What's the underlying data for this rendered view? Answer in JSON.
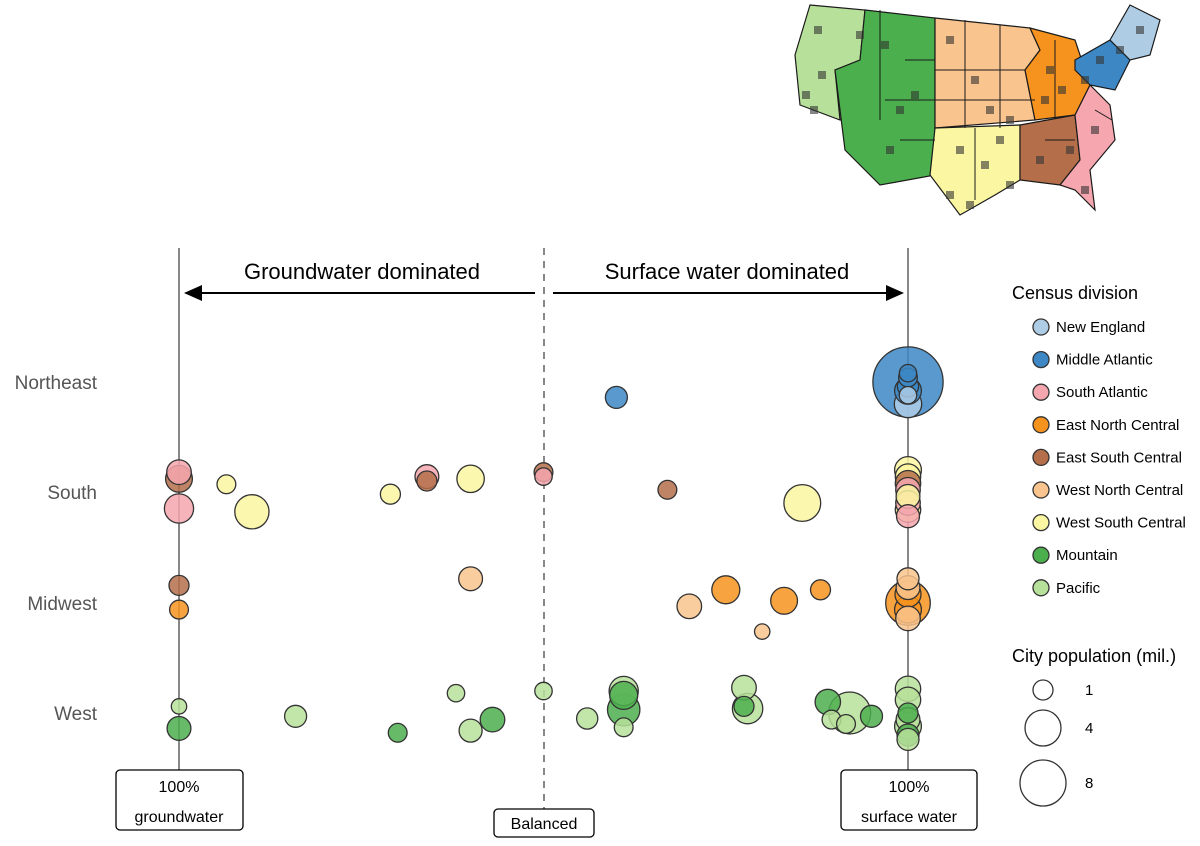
{
  "colors": {
    "New England": "#aecde5",
    "Middle Atlantic": "#3c87c4",
    "South Atlantic": "#f5a6ae",
    "East North Central": "#f6931f",
    "East South Central": "#b46e4a",
    "West North Central": "#f9c48d",
    "West South Central": "#fbf6a1",
    "Mountain": "#4caf4d",
    "Pacific": "#b7e09a"
  },
  "annotations": {
    "groundwater_dominated": "Groundwater dominated",
    "surface_water_dominated": "Surface water dominated",
    "left_box_line1": "100%",
    "left_box_line2": "groundwater",
    "middle_box": "Balanced",
    "right_box_line1": "100%",
    "right_box_line2": "surface water"
  },
  "chart_data": {
    "type": "scatter",
    "x_axis": {
      "range": [
        -1,
        1
      ],
      "left_end": "100% groundwater",
      "center": "Balanced",
      "right_end": "100% surface water"
    },
    "regions": [
      "Northeast",
      "South",
      "Midwest",
      "West"
    ],
    "legend": {
      "color_title": "Census division",
      "divisions": [
        "New England",
        "Middle Atlantic",
        "South Atlantic",
        "East North Central",
        "East South Central",
        "West North Central",
        "West South Central",
        "Mountain",
        "Pacific"
      ],
      "size_title": "City population (mil.)",
      "sizes": [
        1,
        4,
        8
      ]
    },
    "points": [
      {
        "region": "Northeast",
        "division": "Middle Atlantic",
        "x": 1.0,
        "y_offset": 0,
        "pop": 8.3
      },
      {
        "region": "Northeast",
        "division": "Middle Atlantic",
        "x": 1.0,
        "y_offset": -0.08,
        "pop": 0.1
      },
      {
        "region": "Northeast",
        "division": "Middle Atlantic",
        "x": 1.0,
        "y_offset": -0.04,
        "pop": 0.15
      },
      {
        "region": "Northeast",
        "division": "Middle Atlantic",
        "x": 1.0,
        "y_offset": 0.04,
        "pop": 0.25
      },
      {
        "region": "Northeast",
        "division": "Middle Atlantic",
        "x": 1.0,
        "y_offset": 0.08,
        "pop": 0.6
      },
      {
        "region": "Northeast",
        "division": "New England",
        "x": 1.0,
        "y_offset": 0.12,
        "pop": 0.1
      },
      {
        "region": "Northeast",
        "division": "New England",
        "x": 1.0,
        "y_offset": 0.2,
        "pop": 0.65
      },
      {
        "region": "Northeast",
        "division": "Middle Atlantic",
        "x": 0.2,
        "y_offset": 0.14,
        "pop": 0.3
      },
      {
        "region": "South",
        "division": "South Atlantic",
        "x": -1.0,
        "y_offset": -0.18,
        "pop": 0.45
      },
      {
        "region": "South",
        "division": "East South Central",
        "x": -1.0,
        "y_offset": -0.12,
        "pop": 0.6
      },
      {
        "region": "South",
        "division": "South Atlantic",
        "x": -1.0,
        "y_offset": 0.15,
        "pop": 0.8
      },
      {
        "region": "South",
        "division": "West South Central",
        "x": -0.87,
        "y_offset": -0.07,
        "pop": 0.15
      },
      {
        "region": "South",
        "division": "West South Central",
        "x": -0.8,
        "y_offset": 0.18,
        "pop": 1.3
      },
      {
        "region": "South",
        "division": "South Atlantic",
        "x": -0.32,
        "y_offset": -0.14,
        "pop": 0.4
      },
      {
        "region": "South",
        "division": "East South Central",
        "x": -0.32,
        "y_offset": -0.1,
        "pop": 0.2
      },
      {
        "region": "South",
        "division": "West South Central",
        "x": -0.42,
        "y_offset": 0.02,
        "pop": 0.2
      },
      {
        "region": "South",
        "division": "West South Central",
        "x": -0.2,
        "y_offset": -0.12,
        "pop": 0.65
      },
      {
        "region": "South",
        "division": "East South Central",
        "x": 0.0,
        "y_offset": -0.18,
        "pop": 0.15
      },
      {
        "region": "South",
        "division": "South Atlantic",
        "x": 0.0,
        "y_offset": -0.14,
        "pop": 0.1
      },
      {
        "region": "South",
        "division": "East South Central",
        "x": 0.34,
        "y_offset": -0.02,
        "pop": 0.15
      },
      {
        "region": "South",
        "division": "West South Central",
        "x": 0.71,
        "y_offset": 0.1,
        "pop": 1.6
      },
      {
        "region": "South",
        "division": "West South Central",
        "x": 1.0,
        "y_offset": -0.2,
        "pop": 0.6
      },
      {
        "region": "South",
        "division": "West South Central",
        "x": 1.0,
        "y_offset": -0.14,
        "pop": 0.5
      },
      {
        "region": "South",
        "division": "East South Central",
        "x": 1.0,
        "y_offset": -0.08,
        "pop": 0.5
      },
      {
        "region": "South",
        "division": "South Atlantic",
        "x": 1.0,
        "y_offset": -0.02,
        "pop": 0.45
      },
      {
        "region": "South",
        "division": "West South Central",
        "x": 1.0,
        "y_offset": 0.04,
        "pop": 0.4
      },
      {
        "region": "South",
        "division": "South Atlantic",
        "x": 1.0,
        "y_offset": 0.1,
        "pop": 0.45
      },
      {
        "region": "South",
        "division": "West South Central",
        "x": 1.0,
        "y_offset": 0.16,
        "pop": 0.5
      },
      {
        "region": "South",
        "division": "South Atlantic",
        "x": 1.0,
        "y_offset": 0.22,
        "pop": 0.35
      },
      {
        "region": "Midwest",
        "division": "East South Central",
        "x": -1.0,
        "y_offset": -0.16,
        "pop": 0.2
      },
      {
        "region": "Midwest",
        "division": "East North Central",
        "x": -1.0,
        "y_offset": 0.06,
        "pop": 0.15
      },
      {
        "region": "Midwest",
        "division": "West North Central",
        "x": -0.2,
        "y_offset": -0.22,
        "pop": 0.4
      },
      {
        "region": "Midwest",
        "division": "West North Central",
        "x": 0.4,
        "y_offset": 0.03,
        "pop": 0.45
      },
      {
        "region": "Midwest",
        "division": "East North Central",
        "x": 0.5,
        "y_offset": -0.12,
        "pop": 0.7
      },
      {
        "region": "Midwest",
        "division": "East North Central",
        "x": 0.66,
        "y_offset": -0.02,
        "pop": 0.6
      },
      {
        "region": "Midwest",
        "division": "East North Central",
        "x": 0.76,
        "y_offset": -0.12,
        "pop": 0.2
      },
      {
        "region": "Midwest",
        "division": "West North Central",
        "x": 0.6,
        "y_offset": 0.26,
        "pop": 0.05
      },
      {
        "region": "Midwest",
        "division": "West North Central",
        "x": 1.0,
        "y_offset": -0.22,
        "pop": 0.3
      },
      {
        "region": "Midwest",
        "division": "West North Central",
        "x": 1.0,
        "y_offset": -0.14,
        "pop": 0.4
      },
      {
        "region": "Midwest",
        "division": "East North Central",
        "x": 1.0,
        "y_offset": -0.08,
        "pop": 0.55
      },
      {
        "region": "Midwest",
        "division": "East North Central",
        "x": 1.0,
        "y_offset": 0.0,
        "pop": 2.7
      },
      {
        "region": "Midwest",
        "division": "East North Central",
        "x": 1.0,
        "y_offset": 0.06,
        "pop": 0.6
      },
      {
        "region": "Midwest",
        "division": "West North Central",
        "x": 1.0,
        "y_offset": 0.14,
        "pop": 0.45
      },
      {
        "region": "West",
        "division": "Pacific",
        "x": -1.0,
        "y_offset": -0.06,
        "pop": 0.05
      },
      {
        "region": "West",
        "division": "Mountain",
        "x": -1.0,
        "y_offset": 0.14,
        "pop": 0.4
      },
      {
        "region": "West",
        "division": "Pacific",
        "x": -0.68,
        "y_offset": 0.03,
        "pop": 0.3
      },
      {
        "region": "West",
        "division": "Mountain",
        "x": -0.4,
        "y_offset": 0.18,
        "pop": 0.15
      },
      {
        "region": "West",
        "division": "Pacific",
        "x": -0.24,
        "y_offset": -0.18,
        "pop": 0.1
      },
      {
        "region": "West",
        "division": "Pacific",
        "x": -0.2,
        "y_offset": 0.16,
        "pop": 0.35
      },
      {
        "region": "West",
        "division": "Mountain",
        "x": -0.14,
        "y_offset": 0.06,
        "pop": 0.45
      },
      {
        "region": "West",
        "division": "Pacific",
        "x": 0.0,
        "y_offset": -0.2,
        "pop": 0.1
      },
      {
        "region": "West",
        "division": "Pacific",
        "x": 0.12,
        "y_offset": 0.05,
        "pop": 0.25
      },
      {
        "region": "West",
        "division": "Pacific",
        "x": 0.22,
        "y_offset": -0.2,
        "pop": 0.8
      },
      {
        "region": "West",
        "division": "Mountain",
        "x": 0.22,
        "y_offset": -0.16,
        "pop": 0.7
      },
      {
        "region": "West",
        "division": "Mountain",
        "x": 0.22,
        "y_offset": -0.03,
        "pop": 1.1
      },
      {
        "region": "West",
        "division": "Pacific",
        "x": 0.22,
        "y_offset": 0.13,
        "pop": 0.15
      },
      {
        "region": "West",
        "division": "Pacific",
        "x": 0.55,
        "y_offset": -0.23,
        "pop": 0.45
      },
      {
        "region": "West",
        "division": "Mountain",
        "x": 0.55,
        "y_offset": -0.06,
        "pop": 0.2
      },
      {
        "region": "West",
        "division": "Pacific",
        "x": 0.56,
        "y_offset": -0.04,
        "pop": 0.9
      },
      {
        "region": "West",
        "division": "Mountain",
        "x": 0.78,
        "y_offset": -0.1,
        "pop": 0.5
      },
      {
        "region": "West",
        "division": "Pacific",
        "x": 0.84,
        "y_offset": 0.0,
        "pop": 2.3
      },
      {
        "region": "West",
        "division": "Mountain",
        "x": 0.9,
        "y_offset": 0.03,
        "pop": 0.3
      },
      {
        "region": "West",
        "division": "Pacific",
        "x": 0.79,
        "y_offset": 0.06,
        "pop": 0.15
      },
      {
        "region": "West",
        "division": "Pacific",
        "x": 0.83,
        "y_offset": 0.1,
        "pop": 0.15
      },
      {
        "region": "West",
        "division": "Pacific",
        "x": 1.0,
        "y_offset": -0.22,
        "pop": 0.5
      },
      {
        "region": "West",
        "division": "Pacific",
        "x": 1.0,
        "y_offset": -0.12,
        "pop": 0.5
      },
      {
        "region": "West",
        "division": "Mountain",
        "x": 1.0,
        "y_offset": 0.0,
        "pop": 0.2
      },
      {
        "region": "West",
        "division": "Pacific",
        "x": 1.0,
        "y_offset": 0.06,
        "pop": 0.4
      },
      {
        "region": "West",
        "division": "Pacific",
        "x": 1.0,
        "y_offset": 0.12,
        "pop": 0.6
      },
      {
        "region": "West",
        "division": "Mountain",
        "x": 1.0,
        "y_offset": 0.2,
        "pop": 0.3
      },
      {
        "region": "West",
        "division": "Pacific",
        "x": 1.0,
        "y_offset": 0.24,
        "pop": 0.3
      }
    ]
  }
}
